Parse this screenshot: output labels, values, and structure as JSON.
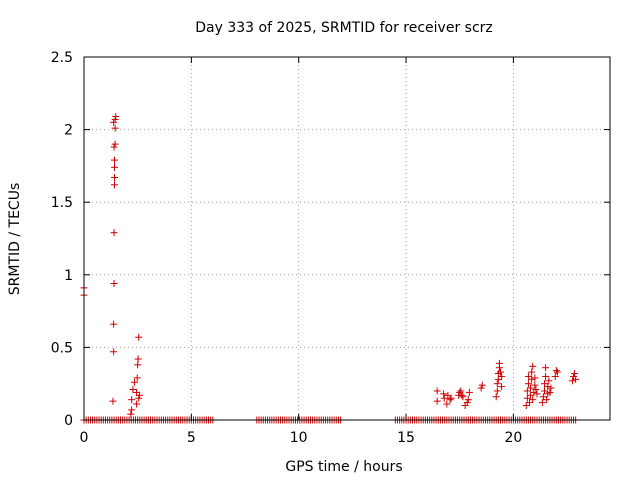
{
  "chart_data": {
    "type": "scatter",
    "title": "Day 333 of 2025, SRMTID for receiver scrz",
    "xlabel": "GPS time / hours",
    "ylabel": "SRMTID / TECUs",
    "xlim": [
      0,
      24.5
    ],
    "ylim": [
      0,
      2.5
    ],
    "xticks": [
      0,
      5,
      10,
      15,
      20
    ],
    "xtick_labels": [
      "0",
      "5",
      "10",
      "15",
      "20"
    ],
    "yticks": [
      0,
      0.5,
      1,
      1.5,
      2,
      2.5
    ],
    "ytick_labels": [
      "0",
      "0.5",
      "1",
      "1.5",
      "2",
      "2.5"
    ],
    "grid": true,
    "marker": "+",
    "color": "#cc0000",
    "series": [
      {
        "name": "SRMTID",
        "zero_segments": [
          [
            0,
            6.0
          ],
          [
            8.05,
            9.95
          ],
          [
            10.05,
            12.0
          ],
          [
            14.5,
            22.9
          ]
        ],
        "zero_step": 0.1,
        "points": [
          [
            0.0,
            0.91
          ],
          [
            0.0,
            0.86
          ],
          [
            1.35,
            0.13
          ],
          [
            1.38,
            0.47
          ],
          [
            1.38,
            0.66
          ],
          [
            1.4,
            0.94
          ],
          [
            1.4,
            1.29
          ],
          [
            1.42,
            1.62
          ],
          [
            1.42,
            1.67
          ],
          [
            1.42,
            1.74
          ],
          [
            1.42,
            1.79
          ],
          [
            1.4,
            1.88
          ],
          [
            1.45,
            1.9
          ],
          [
            1.38,
            2.05
          ],
          [
            1.45,
            2.01
          ],
          [
            1.45,
            2.07
          ],
          [
            1.48,
            2.09
          ],
          [
            2.18,
            0.04
          ],
          [
            2.22,
            0.07
          ],
          [
            2.22,
            0.14
          ],
          [
            2.28,
            0.21
          ],
          [
            2.35,
            0.26
          ],
          [
            2.45,
            0.11
          ],
          [
            2.45,
            0.19
          ],
          [
            2.48,
            0.29
          ],
          [
            2.5,
            0.38
          ],
          [
            2.52,
            0.42
          ],
          [
            2.55,
            0.57
          ],
          [
            2.55,
            0.15
          ],
          [
            2.58,
            0.17
          ],
          [
            16.45,
            0.13
          ],
          [
            16.45,
            0.2
          ],
          [
            16.75,
            0.18
          ],
          [
            16.78,
            0.15
          ],
          [
            16.9,
            0.11
          ],
          [
            16.95,
            0.17
          ],
          [
            17.05,
            0.14
          ],
          [
            17.1,
            0.15
          ],
          [
            17.45,
            0.17
          ],
          [
            17.5,
            0.19
          ],
          [
            17.55,
            0.2
          ],
          [
            17.6,
            0.17
          ],
          [
            17.65,
            0.16
          ],
          [
            17.75,
            0.1
          ],
          [
            17.85,
            0.12
          ],
          [
            17.9,
            0.14
          ],
          [
            17.95,
            0.19
          ],
          [
            18.5,
            0.22
          ],
          [
            18.55,
            0.24
          ],
          [
            19.2,
            0.16
          ],
          [
            19.25,
            0.2
          ],
          [
            19.25,
            0.25
          ],
          [
            19.3,
            0.28
          ],
          [
            19.3,
            0.32
          ],
          [
            19.35,
            0.36
          ],
          [
            19.35,
            0.39
          ],
          [
            19.4,
            0.33
          ],
          [
            19.45,
            0.23
          ],
          [
            19.45,
            0.3
          ],
          [
            20.6,
            0.1
          ],
          [
            20.65,
            0.15
          ],
          [
            20.65,
            0.2
          ],
          [
            20.7,
            0.25
          ],
          [
            20.7,
            0.3
          ],
          [
            20.75,
            0.12
          ],
          [
            20.8,
            0.17
          ],
          [
            20.8,
            0.22
          ],
          [
            20.85,
            0.28
          ],
          [
            20.85,
            0.33
          ],
          [
            20.9,
            0.37
          ],
          [
            20.9,
            0.14
          ],
          [
            20.95,
            0.19
          ],
          [
            21.0,
            0.24
          ],
          [
            21.0,
            0.29
          ],
          [
            21.05,
            0.21
          ],
          [
            21.1,
            0.18
          ],
          [
            21.35,
            0.12
          ],
          [
            21.4,
            0.16
          ],
          [
            21.45,
            0.2
          ],
          [
            21.45,
            0.25
          ],
          [
            21.5,
            0.3
          ],
          [
            21.5,
            0.36
          ],
          [
            21.55,
            0.14
          ],
          [
            21.6,
            0.18
          ],
          [
            21.6,
            0.23
          ],
          [
            21.65,
            0.27
          ],
          [
            21.7,
            0.19
          ],
          [
            21.75,
            0.22
          ],
          [
            21.95,
            0.3
          ],
          [
            22.0,
            0.34
          ],
          [
            22.05,
            0.33
          ],
          [
            22.75,
            0.27
          ],
          [
            22.8,
            0.3
          ],
          [
            22.85,
            0.32
          ],
          [
            22.9,
            0.28
          ]
        ]
      }
    ]
  }
}
